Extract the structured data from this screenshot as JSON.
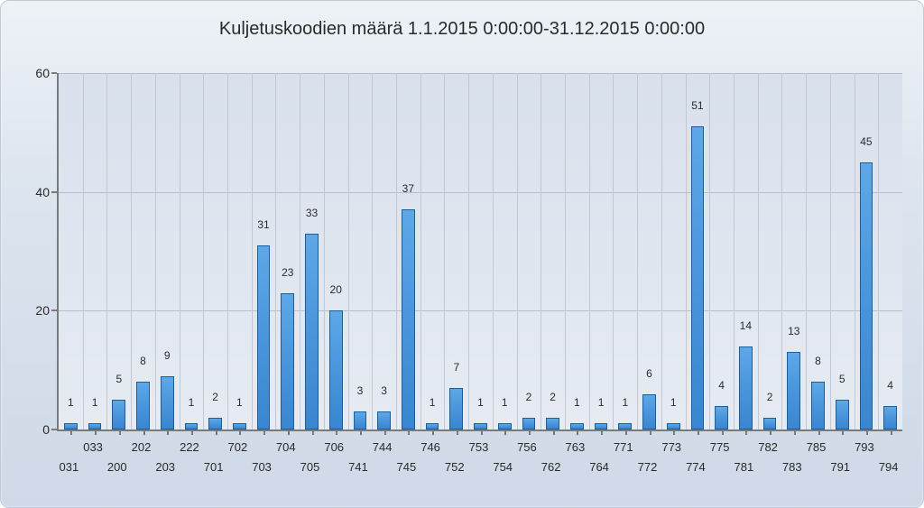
{
  "chart": {
    "type": "bar",
    "title": "Kuljetuskoodien määrä 1.1.2015 0:00:00-31.12.2015 0:00:00",
    "title_fontsize": 20,
    "title_color": "#2a2a2a",
    "card_border_color": "#bfc9d8",
    "card_bg_top": "#eef2f7",
    "card_bg_bottom": "#cfd9e7",
    "plot_bg_top": "#d9e1ed",
    "plot_bg_bottom": "#e6ebf3",
    "axis_color": "#7a7a7a",
    "grid_color": "#c2c8d2",
    "hgrid_color": "#b8bec8",
    "bar_fill_top": "#5ea8e8",
    "bar_fill_bottom": "#3a86cf",
    "bar_border_color": "#1f5d99",
    "value_label_fontsize": 12,
    "axis_label_fontsize": 14,
    "xlabel_fontsize": 13,
    "ylim": [
      0,
      60
    ],
    "ytick_step": 20,
    "yticks": [
      0,
      20,
      40,
      60
    ],
    "bar_width_ratio": 0.55,
    "categories": [
      "031",
      "033",
      "200",
      "202",
      "203",
      "222",
      "701",
      "702",
      "703",
      "704",
      "705",
      "706",
      "741",
      "744",
      "745",
      "746",
      "752",
      "753",
      "754",
      "756",
      "762",
      "763",
      "764",
      "771",
      "772",
      "773",
      "774",
      "775",
      "781",
      "782",
      "783",
      "785",
      "791",
      "793",
      "794"
    ],
    "values": [
      1,
      1,
      5,
      8,
      9,
      1,
      2,
      1,
      31,
      23,
      33,
      20,
      3,
      3,
      37,
      1,
      7,
      1,
      1,
      2,
      2,
      1,
      1,
      1,
      6,
      1,
      51,
      4,
      14,
      2,
      13,
      8,
      5,
      45,
      4
    ],
    "xlabel_upper_row_indexes": [
      1,
      3,
      5,
      7,
      9,
      11,
      13,
      15,
      17,
      19,
      21,
      23,
      25,
      27,
      29,
      31,
      33
    ],
    "xlabel_lower_row_indexes": [
      0,
      2,
      4,
      6,
      8,
      10,
      12,
      14,
      16,
      18,
      20,
      22,
      24,
      26,
      28,
      30,
      32,
      34
    ]
  }
}
